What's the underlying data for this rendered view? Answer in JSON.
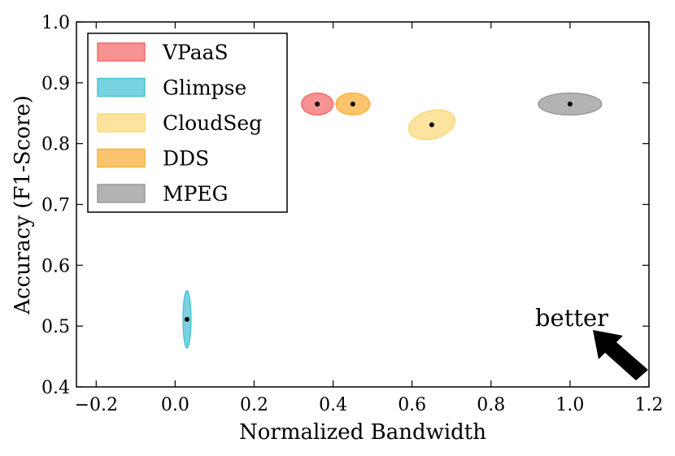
{
  "chart_data": {
    "type": "scatter",
    "title": "",
    "xlabel": "Normalized Bandwidth",
    "ylabel": "Accuracy (F1-Score)",
    "xlim": [
      -0.25,
      1.2
    ],
    "ylim": [
      0.4,
      1.0
    ],
    "x_ticks": [
      -0.2,
      0.0,
      0.2,
      0.4,
      0.6,
      0.8,
      1.0,
      1.2
    ],
    "x_tick_labels": [
      "−0.2",
      "0.0",
      "0.2",
      "0.4",
      "0.6",
      "0.8",
      "1.0",
      "1.2"
    ],
    "y_ticks": [
      0.4,
      0.5,
      0.6,
      0.7,
      0.8,
      0.9,
      1.0
    ],
    "y_tick_labels": [
      "0.4",
      "0.5",
      "0.6",
      "0.7",
      "0.8",
      "0.9",
      "1.0"
    ],
    "grid": false,
    "legend_position": "top-left",
    "series": [
      {
        "name": "VPaaS",
        "color": "#f26d6d",
        "x": 0.36,
        "y": 0.865,
        "x_spread": 0.04,
        "y_spread": 0.018,
        "tilt_deg": 0
      },
      {
        "name": "Glimpse",
        "color": "#4cc3d6",
        "x": 0.03,
        "y": 0.511,
        "x_spread": 0.01,
        "y_spread": 0.047,
        "tilt_deg": 0
      },
      {
        "name": "CloudSeg",
        "color": "#fcd97c",
        "x": 0.65,
        "y": 0.831,
        "x_spread": 0.06,
        "y_spread": 0.023,
        "tilt_deg": -15
      },
      {
        "name": "DDS",
        "color": "#fbb03b",
        "x": 0.45,
        "y": 0.865,
        "x_spread": 0.043,
        "y_spread": 0.018,
        "tilt_deg": 0
      },
      {
        "name": "MPEG",
        "color": "#9a9a9a",
        "x": 1.0,
        "y": 0.865,
        "x_spread": 0.08,
        "y_spread": 0.018,
        "tilt_deg": 0
      }
    ],
    "annotations": [
      {
        "text": "better",
        "x": 1.0,
        "y": 0.5
      }
    ]
  }
}
